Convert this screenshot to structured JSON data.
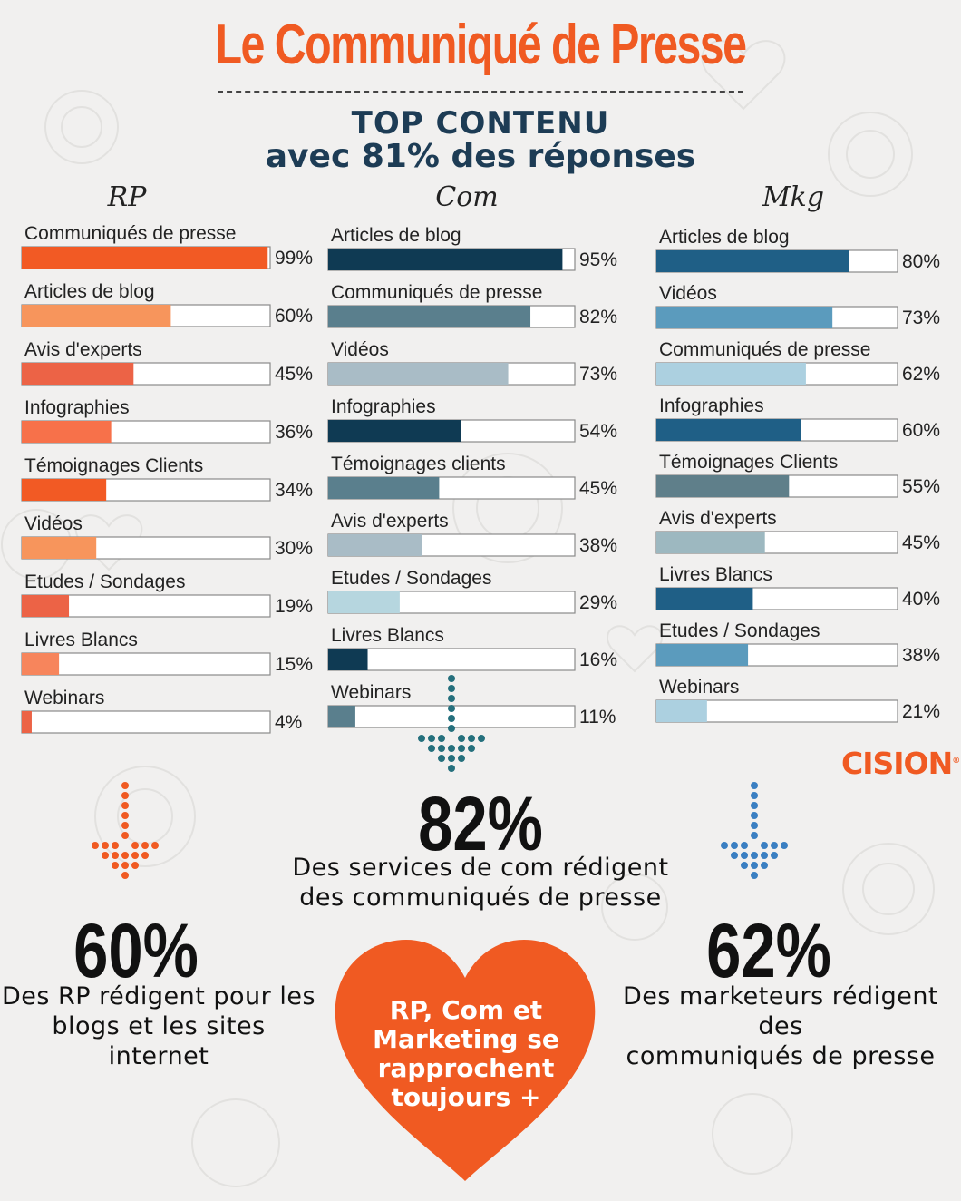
{
  "title": "Le Communiqué de Presse",
  "subtitle": {
    "line1": "TOP CONTENU",
    "line2": "avec 81% des réponses"
  },
  "colors": {
    "orange": "#f05a22",
    "rp_bars": [
      "#f25a24",
      "#f7955c",
      "#ec6346"
    ],
    "com_bars": [
      "#0f3a53",
      "#5a7f8d",
      "#a9bcc6",
      "#b6d6df"
    ],
    "mkg_bars": [
      "#1f5f86",
      "#5b9bbd",
      "#acd0e0",
      "#5f7f8a",
      "#9db8c0"
    ]
  },
  "chart_data": [
    {
      "type": "bar",
      "title": "RP",
      "categories": [
        "Communiqués de presse",
        "Articles de blog",
        "Avis d'experts",
        "Infographies",
        "Témoignages Clients",
        "Vidéos",
        "Etudes / Sondages",
        "Livres Blancs",
        "Webinars"
      ],
      "values": [
        99,
        60,
        45,
        36,
        34,
        30,
        19,
        15,
        4
      ],
      "labels": [
        "99%",
        "60%",
        "45%",
        "36%",
        "34%",
        "30%",
        "19%",
        "15%",
        "4%"
      ],
      "bar_colors": [
        "#f25a24",
        "#f7955c",
        "#ec6346",
        "#f7714a",
        "#f25a24",
        "#f7955c",
        "#ec6346",
        "#f7855c",
        "#ec6346"
      ],
      "xlim": [
        0,
        100
      ]
    },
    {
      "type": "bar",
      "title": "Com",
      "categories": [
        "Articles de blog",
        "Communiqués de presse",
        "Vidéos",
        "Infographies",
        "Témoignages clients",
        "Avis d'experts",
        "Etudes / Sondages",
        "Livres Blancs",
        "Webinars"
      ],
      "values": [
        95,
        82,
        73,
        54,
        45,
        38,
        29,
        16,
        11
      ],
      "labels": [
        "95%",
        "82%",
        "73%",
        "54%",
        "45%",
        "38%",
        "29%",
        "16%",
        "11%"
      ],
      "bar_colors": [
        "#0f3a53",
        "#5a7f8d",
        "#a9bcc6",
        "#0f3a53",
        "#5a7f8d",
        "#a9bcc6",
        "#b6d6df",
        "#0f3a53",
        "#5a7f8d"
      ],
      "xlim": [
        0,
        100
      ]
    },
    {
      "type": "bar",
      "title": "Mkg",
      "categories": [
        "Articles de blog",
        "Vidéos",
        "Communiqués de presse",
        "Infographies",
        "Témoignages Clients",
        "Avis d'experts",
        "Livres Blancs",
        "Etudes / Sondages",
        "Webinars"
      ],
      "values": [
        80,
        73,
        62,
        60,
        55,
        45,
        40,
        38,
        21
      ],
      "labels": [
        "80%",
        "73%",
        "62%",
        "60%",
        "55%",
        "45%",
        "40%",
        "38%",
        "21%"
      ],
      "bar_colors": [
        "#1f5f86",
        "#5b9bbd",
        "#acd0e0",
        "#1f5f86",
        "#5f7f8a",
        "#9db8c0",
        "#1f5f86",
        "#5b9bbd",
        "#acd0e0"
      ],
      "xlim": [
        0,
        100
      ]
    }
  ],
  "stats": {
    "com": {
      "value": "82%",
      "text": [
        "Des services de com rédigent",
        "des communiqués de presse"
      ]
    },
    "rp": {
      "value": "60%",
      "text": [
        "Des RP rédigent pour les",
        "blogs et les sites internet"
      ]
    },
    "mkg": {
      "value": "62%",
      "text": [
        "Des marketeurs rédigent des",
        "communiqués de presse"
      ]
    }
  },
  "heart_text": [
    "RP, Com et",
    "Marketing se",
    "rapprochent",
    "toujours +"
  ],
  "logo": {
    "text": "CISION",
    "mark": "®"
  },
  "arrow_colors": {
    "com": "#25707d",
    "rp": "#f05a22",
    "mkg": "#3a7fc2"
  }
}
